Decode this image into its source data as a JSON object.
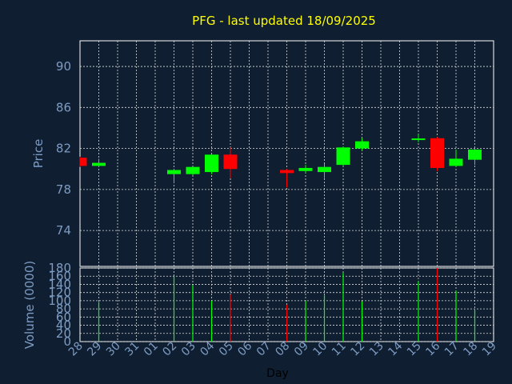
{
  "chart_data": {
    "type": "candlestick",
    "title": "PFG - last updated 18/09/2025",
    "xlabel": "Day",
    "days": [
      "28",
      "29",
      "30",
      "31",
      "01",
      "02",
      "03",
      "04",
      "05",
      "06",
      "07",
      "08",
      "09",
      "10",
      "11",
      "12",
      "13",
      "14",
      "15",
      "16",
      "17",
      "18",
      "19"
    ],
    "price": {
      "ylabel": "Price",
      "ylim": [
        70.5,
        92.5
      ],
      "yticks": [
        74,
        78,
        82,
        86,
        90
      ],
      "candles": [
        {
          "day": "28",
          "open": 81.1,
          "high": 81.2,
          "low": 80.2,
          "close": 80.3
        },
        {
          "day": "29",
          "open": 80.3,
          "high": 81.0,
          "low": 80.2,
          "close": 80.6
        },
        {
          "day": "02",
          "open": 79.5,
          "high": 80.0,
          "low": 78.6,
          "close": 79.9
        },
        {
          "day": "03",
          "open": 79.5,
          "high": 80.2,
          "low": 79.4,
          "close": 80.2
        },
        {
          "day": "04",
          "open": 79.7,
          "high": 81.4,
          "low": 79.5,
          "close": 81.4
        },
        {
          "day": "05",
          "open": 81.4,
          "high": 82.1,
          "low": 79.1,
          "close": 80.0
        },
        {
          "day": "08",
          "open": 79.9,
          "high": 80.0,
          "low": 78.2,
          "close": 79.6
        },
        {
          "day": "09",
          "open": 79.8,
          "high": 80.4,
          "low": 79.6,
          "close": 80.1
        },
        {
          "day": "10",
          "open": 79.7,
          "high": 80.5,
          "low": 79.1,
          "close": 80.2
        },
        {
          "day": "11",
          "open": 80.4,
          "high": 82.2,
          "low": 80.3,
          "close": 82.1
        },
        {
          "day": "12",
          "open": 82.0,
          "high": 83.0,
          "low": 81.8,
          "close": 82.7
        },
        {
          "day": "15",
          "open": 82.8,
          "high": 83.4,
          "low": 82.6,
          "close": 82.9
        },
        {
          "day": "16",
          "open": 83.0,
          "high": 83.1,
          "low": 79.8,
          "close": 80.1
        },
        {
          "day": "17",
          "open": 80.3,
          "high": 81.9,
          "low": 80.2,
          "close": 81.0
        },
        {
          "day": "18",
          "open": 80.9,
          "high": 82.0,
          "low": 80.4,
          "close": 81.9
        }
      ]
    },
    "volume": {
      "ylabel": "Volume (0000)",
      "ylim": [
        0,
        180
      ],
      "yticks": [
        0,
        20,
        40,
        60,
        80,
        100,
        120,
        140,
        160,
        180
      ],
      "bars": [
        {
          "day": "29",
          "value": 97
        },
        {
          "day": "02",
          "value": 160
        },
        {
          "day": "03",
          "value": 138
        },
        {
          "day": "04",
          "value": 100
        },
        {
          "day": "05",
          "value": 115
        },
        {
          "day": "08",
          "value": 90
        },
        {
          "day": "09",
          "value": 100
        },
        {
          "day": "10",
          "value": 113
        },
        {
          "day": "11",
          "value": 168
        },
        {
          "day": "12",
          "value": 98
        },
        {
          "day": "15",
          "value": 148
        },
        {
          "day": "16",
          "value": 180
        },
        {
          "day": "17",
          "value": 125
        },
        {
          "day": "18",
          "value": 77
        }
      ]
    },
    "grid": true,
    "colors": {
      "background": "#0f1e30",
      "up": "#00ff00",
      "down": "#ff0000",
      "text": "#7d9cc4",
      "title": "#ffff00",
      "frame": "#ffffff"
    }
  }
}
